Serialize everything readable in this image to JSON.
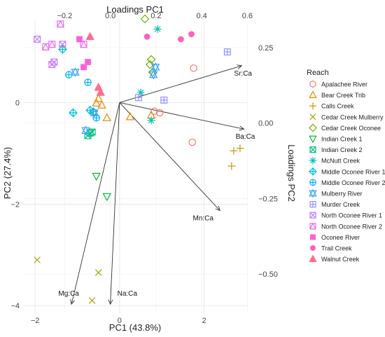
{
  "chart_data": {
    "type": "scatter",
    "title": "",
    "xlabel": "PC1 (43.8%)",
    "ylabel": "PC2 (27.4%)",
    "x2label": "Loadings PC1",
    "y2label": "Loadings PC2",
    "xlim": [
      -2.3,
      3.05
    ],
    "ylim": [
      -4.15,
      1.65
    ],
    "xticks": [
      -2,
      0,
      2
    ],
    "yticks": [
      -4,
      -2,
      0
    ],
    "x2lim": [
      -0.385,
      0.605
    ],
    "y2lim": [
      -0.63,
      0.345
    ],
    "x2ticks": [
      -0.2,
      0.0,
      0.2,
      0.4,
      0.6
    ],
    "x2ticklabels": [
      "−0.2",
      "0.0",
      "0.2",
      "0.4",
      "0.6"
    ],
    "y2ticks": [
      0.25,
      0.0,
      -0.25,
      -0.5
    ],
    "y2ticklabels": [
      "0.25",
      "0.00",
      "−0.25",
      "−0.50"
    ],
    "grid": true,
    "legend_title": "Reach",
    "legend_position": "right",
    "loadings": [
      {
        "label": "Sr:Ca",
        "x": 0.575,
        "y": 0.19
      },
      {
        "label": "Ba:Ca",
        "x": 0.585,
        "y": -0.02
      },
      {
        "label": "Mn:Ca",
        "x": 0.48,
        "y": -0.29
      },
      {
        "label": "Mg:Ca",
        "x": -0.17,
        "y": -0.6
      },
      {
        "label": "Na:Ca",
        "x": 0.0,
        "y": -0.6
      }
    ],
    "series": [
      {
        "name": "Apalachee River",
        "color": "#F8766D",
        "shape": "circle-open",
        "points": [
          [
            1.75,
            0.68
          ],
          [
            0.95,
            -0.2
          ],
          [
            1.72,
            -0.78
          ],
          [
            0.82,
            -0.17
          ]
        ]
      },
      {
        "name": "Bear Creek Trib",
        "color": "#E58700",
        "shape": "triangle-open",
        "points": [
          [
            -0.5,
            0.08
          ],
          [
            -0.55,
            -0.01
          ],
          [
            0.25,
            -0.28
          ],
          [
            0.75,
            -0.25
          ],
          [
            -0.3,
            -0.3
          ],
          [
            -0.42,
            -0.05
          ]
        ]
      },
      {
        "name": "Calls Creek",
        "color": "#C99800",
        "shape": "plus",
        "points": [
          [
            2.7,
            -0.95
          ],
          [
            2.85,
            -0.9
          ],
          [
            2.65,
            -1.25
          ]
        ]
      },
      {
        "name": "Cedar Creek Mulberry",
        "color": "#A3A500",
        "shape": "cross",
        "points": [
          [
            -1.95,
            -3.1
          ],
          [
            -0.5,
            -3.35
          ],
          [
            -0.65,
            -3.9
          ]
        ]
      },
      {
        "name": "Cedar Creek Oconee",
        "color": "#6BB100",
        "shape": "diamond-open",
        "points": [
          [
            0.6,
            1.65
          ],
          [
            0.75,
            0.85
          ],
          [
            0.78,
            0.6
          ],
          [
            0.72,
            0.75
          ]
        ]
      },
      {
        "name": "Indian Creek 1",
        "color": "#00BA38",
        "shape": "triangle-down-open",
        "points": [
          [
            -0.55,
            -1.45
          ],
          [
            -0.3,
            -1.85
          ]
        ]
      },
      {
        "name": "Indian Creek 2",
        "color": "#00BF7D",
        "shape": "square-cross",
        "points": [
          [
            -0.7,
            -0.6
          ],
          [
            -0.65,
            -0.58
          ],
          [
            -0.75,
            -0.65
          ]
        ]
      },
      {
        "name": "McNutt Creek",
        "color": "#00C0AF",
        "shape": "asterisk",
        "points": [
          [
            0.9,
            1.45
          ],
          [
            0.5,
            0.2
          ],
          [
            0.75,
            -0.35
          ]
        ]
      },
      {
        "name": "Middle Oconee River 1",
        "color": "#00BCD8",
        "shape": "diamond-plus",
        "points": [
          [
            -1.35,
            1.05
          ],
          [
            -1.1,
            -0.2
          ],
          [
            -0.7,
            -0.15
          ],
          [
            -0.62,
            -0.18
          ]
        ]
      },
      {
        "name": "Middle Oconee River 2",
        "color": "#00B0F6",
        "shape": "circle-plus",
        "points": [
          [
            -1.2,
            0.55
          ],
          [
            -0.75,
            0.4
          ],
          [
            -0.55,
            -0.3
          ]
        ]
      },
      {
        "name": "Mulberry River",
        "color": "#35A2FF",
        "shape": "star-of-david",
        "points": [
          [
            -1.05,
            0.6
          ],
          [
            -0.8,
            -0.55
          ],
          [
            0.85,
            0.7
          ],
          [
            0.8,
            0.55
          ],
          [
            -0.6,
            -0.2
          ]
        ]
      },
      {
        "name": "Murder Creek",
        "color": "#9590FF",
        "shape": "square-plus",
        "points": [
          [
            2.55,
            1.0
          ],
          [
            1.05,
            0.05
          ],
          [
            0.45,
            0.1
          ]
        ]
      },
      {
        "name": "North Oconee River 1",
        "color": "#C77CFF",
        "shape": "square-cross",
        "points": [
          [
            -1.95,
            1.25
          ],
          [
            -1.55,
            0.8
          ],
          [
            -1.6,
            0.75
          ],
          [
            -1.35,
            1.15
          ]
        ]
      },
      {
        "name": "North Oconee River 2",
        "color": "#E76BF3",
        "shape": "square-triangle",
        "points": [
          [
            -1.4,
            1.55
          ],
          [
            -1.6,
            1.15
          ],
          [
            -0.85,
            1.15
          ],
          [
            -1.75,
            1.1
          ]
        ]
      },
      {
        "name": "Oconee River",
        "color": "#FA62DB",
        "shape": "square",
        "points": [
          [
            -0.95,
            1.25
          ],
          [
            -0.75,
            0.8
          ],
          [
            -0.85,
            0.7
          ]
        ]
      },
      {
        "name": "Trail Creek",
        "color": "#FF62BC",
        "shape": "circle",
        "points": [
          [
            0.65,
            1.3
          ],
          [
            1.45,
            1.25
          ],
          [
            1.7,
            1.35
          ]
        ]
      },
      {
        "name": "Walnut Creek",
        "color": "#FF6C91",
        "shape": "triangle",
        "points": [
          [
            -0.7,
            1.3
          ],
          [
            -0.5,
            0.3
          ],
          [
            -0.45,
            0.2
          ]
        ]
      }
    ]
  }
}
